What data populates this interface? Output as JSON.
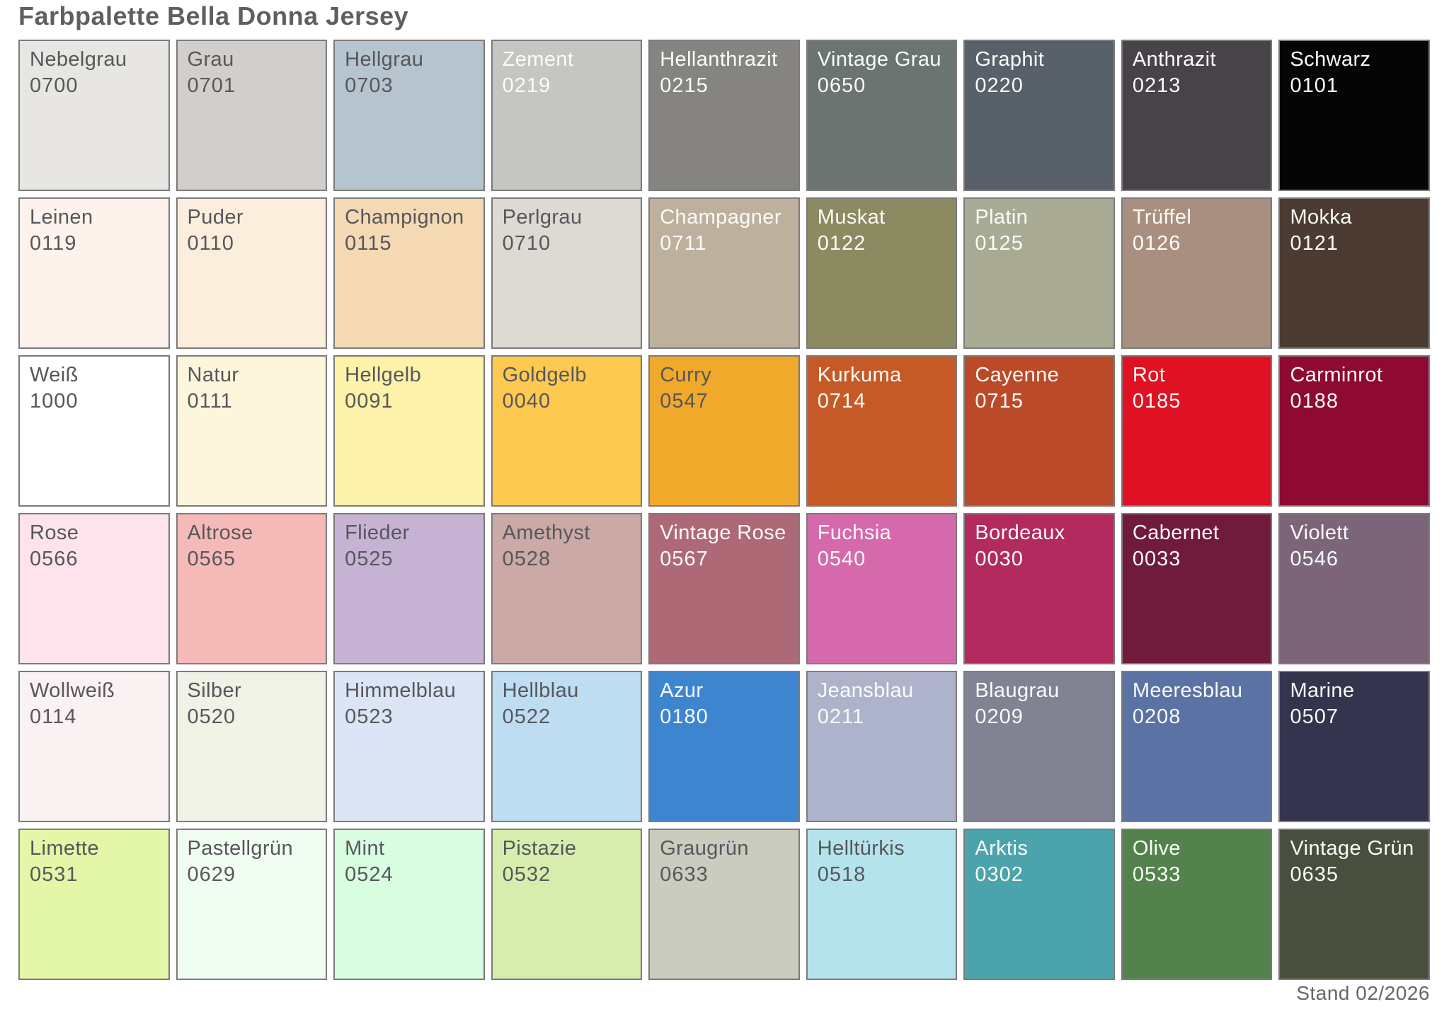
{
  "title": "Farbpalette Bella Donna Jersey",
  "footer": "Stand 02/2026",
  "colors": {
    "background": "#ffffff",
    "swatch_border": "#7c7c7c",
    "title_text": "#5f5f5f",
    "dark_label_text": "#57575b",
    "light_label_text": "#fbfbf9",
    "footer_text": "#676767"
  },
  "chart_data": {
    "type": "table",
    "title": "Farbpalette Bella Donna Jersey",
    "rows": 6,
    "columns": 9,
    "legend_position": "none",
    "grid": "white gaps between bordered color swatches",
    "swatches": [
      {
        "name": "Nebelgrau",
        "code": "0700",
        "hex": "#e7e6e3",
        "text_hex": "#57575b"
      },
      {
        "name": "Grau",
        "code": "0701",
        "hex": "#d2cecc",
        "text_hex": "#57575b"
      },
      {
        "name": "Hellgrau",
        "code": "0703",
        "hex": "#b5c4ce",
        "text_hex": "#57575b"
      },
      {
        "name": "Zement",
        "code": "0219",
        "hex": "#c5c6c2",
        "text_hex": "#fbfbf9"
      },
      {
        "name": "Hellanthrazit",
        "code": "0215",
        "hex": "#868481",
        "text_hex": "#fbfbf9"
      },
      {
        "name": "Vintage Grau",
        "code": "0650",
        "hex": "#6b7471",
        "text_hex": "#fbfbf9"
      },
      {
        "name": "Graphit",
        "code": "0220",
        "hex": "#586069",
        "text_hex": "#fbfbf9"
      },
      {
        "name": "Anthrazit",
        "code": "0213",
        "hex": "#474349",
        "text_hex": "#fbfbf9"
      },
      {
        "name": "Schwarz",
        "code": "0101",
        "hex": "#050505",
        "text_hex": "#fbfbf9"
      },
      {
        "name": "Leinen",
        "code": "0119",
        "hex": "#fdf2ec",
        "text_hex": "#57575b"
      },
      {
        "name": "Puder",
        "code": "0110",
        "hex": "#fbeedd",
        "text_hex": "#57575b"
      },
      {
        "name": "Champignon",
        "code": "0115",
        "hex": "#f4d9b4",
        "text_hex": "#57575b"
      },
      {
        "name": "Perlgrau",
        "code": "0710",
        "hex": "#dcdad2",
        "text_hex": "#57575b"
      },
      {
        "name": "Champagner",
        "code": "0711",
        "hex": "#bdb19e",
        "text_hex": "#fbfbf9"
      },
      {
        "name": "Muskat",
        "code": "0122",
        "hex": "#8b8a61",
        "text_hex": "#fbfbf9"
      },
      {
        "name": "Platin",
        "code": "0125",
        "hex": "#a9aa94",
        "text_hex": "#fbfbf9"
      },
      {
        "name": "Trüffel",
        "code": "0126",
        "hex": "#a98f7f",
        "text_hex": "#fbfbf9"
      },
      {
        "name": "Mokka",
        "code": "0121",
        "hex": "#4c3b33",
        "text_hex": "#fbfbf9"
      },
      {
        "name": "Weiß",
        "code": "1000",
        "hex": "#ffffff",
        "text_hex": "#57575b"
      },
      {
        "name": "Natur",
        "code": "0111",
        "hex": "#fdf5dc",
        "text_hex": "#57575b"
      },
      {
        "name": "Hellgelb",
        "code": "0091",
        "hex": "#fdf2a9",
        "text_hex": "#57575b"
      },
      {
        "name": "Goldgelb",
        "code": "0040",
        "hex": "#fdc951",
        "text_hex": "#57575b"
      },
      {
        "name": "Curry",
        "code": "0547",
        "hex": "#f0a92b",
        "text_hex": "#57575b"
      },
      {
        "name": "Kurkuma",
        "code": "0714",
        "hex": "#c65a26",
        "text_hex": "#fbfbf9"
      },
      {
        "name": "Cayenne",
        "code": "0715",
        "hex": "#bb4a28",
        "text_hex": "#fbfbf9"
      },
      {
        "name": "Rot",
        "code": "0185",
        "hex": "#e01123",
        "text_hex": "#fbfbf9"
      },
      {
        "name": "Carminrot",
        "code": "0188",
        "hex": "#8e0a33",
        "text_hex": "#fbfbf9"
      },
      {
        "name": "Rose",
        "code": "0566",
        "hex": "#fee3ec",
        "text_hex": "#57575b"
      },
      {
        "name": "Altrose",
        "code": "0565",
        "hex": "#f5bab8",
        "text_hex": "#57575b"
      },
      {
        "name": "Flieder",
        "code": "0525",
        "hex": "#c6b3d4",
        "text_hex": "#57575b"
      },
      {
        "name": "Amethyst",
        "code": "0528",
        "hex": "#caa9a6",
        "text_hex": "#57575b"
      },
      {
        "name": "Vintage Rose",
        "code": "0567",
        "hex": "#ad6976",
        "text_hex": "#fbfbf9"
      },
      {
        "name": "Fuchsia",
        "code": "0540",
        "hex": "#d669ac",
        "text_hex": "#fbfbf9"
      },
      {
        "name": "Bordeaux",
        "code": "0030",
        "hex": "#b22a5e",
        "text_hex": "#fbfbf9"
      },
      {
        "name": "Cabernet",
        "code": "0033",
        "hex": "#701a3c",
        "text_hex": "#fbfbf9"
      },
      {
        "name": "Violett",
        "code": "0546",
        "hex": "#7c6579",
        "text_hex": "#fbfbf9"
      },
      {
        "name": "Wollweiß",
        "code": "0114",
        "hex": "#faf2f2",
        "text_hex": "#57575b"
      },
      {
        "name": "Silber",
        "code": "0520",
        "hex": "#f0f2e6",
        "text_hex": "#57575b"
      },
      {
        "name": "Himmelblau",
        "code": "0523",
        "hex": "#dce5f5",
        "text_hex": "#57575b"
      },
      {
        "name": "Hellblau",
        "code": "0522",
        "hex": "#bedcf2",
        "text_hex": "#57575b"
      },
      {
        "name": "Azur",
        "code": "0180",
        "hex": "#3d85cf",
        "text_hex": "#fbfbf9"
      },
      {
        "name": "Jeansblau",
        "code": "0211",
        "hex": "#aeb3cc",
        "text_hex": "#fbfbf9"
      },
      {
        "name": "Blaugrau",
        "code": "0209",
        "hex": "#818393",
        "text_hex": "#fbfbf9"
      },
      {
        "name": "Meeresblau",
        "code": "0208",
        "hex": "#5a73a4",
        "text_hex": "#fbfbf9"
      },
      {
        "name": "Marine",
        "code": "0507",
        "hex": "#35344f",
        "text_hex": "#fbfbf9"
      },
      {
        "name": "Limette",
        "code": "0531",
        "hex": "#e4f7a8",
        "text_hex": "#57575b"
      },
      {
        "name": "Pastellgrün",
        "code": "0629",
        "hex": "#f0fdf1",
        "text_hex": "#57575b"
      },
      {
        "name": "Mint",
        "code": "0524",
        "hex": "#d9fde0",
        "text_hex": "#57575b"
      },
      {
        "name": "Pistazie",
        "code": "0532",
        "hex": "#d6edae",
        "text_hex": "#57575b"
      },
      {
        "name": "Graugrün",
        "code": "0633",
        "hex": "#cbccc0",
        "text_hex": "#57575b"
      },
      {
        "name": "Helltürkis",
        "code": "0518",
        "hex": "#b5e3ec",
        "text_hex": "#57575b"
      },
      {
        "name": "Arktis",
        "code": "0302",
        "hex": "#4ba3ab",
        "text_hex": "#fbfbf9"
      },
      {
        "name": "Olive",
        "code": "0533",
        "hex": "#53824c",
        "text_hex": "#fbfbf9"
      },
      {
        "name": "Vintage Grün",
        "code": "0635",
        "hex": "#494f3f",
        "text_hex": "#fbfbf9"
      }
    ]
  }
}
